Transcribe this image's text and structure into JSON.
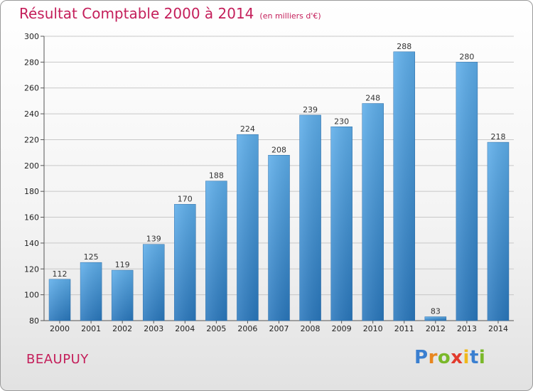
{
  "chart_data": {
    "type": "bar",
    "title": "Résultat Comptable 2000 à 2014",
    "subtitle": "(en milliers d'€)",
    "categories": [
      "2000",
      "2001",
      "2002",
      "2003",
      "2004",
      "2005",
      "2006",
      "2007",
      "2008",
      "2009",
      "2010",
      "2011",
      "2012",
      "2013",
      "2014"
    ],
    "values": [
      112,
      125,
      119,
      139,
      170,
      188,
      224,
      208,
      239,
      230,
      248,
      288,
      83,
      280,
      218
    ],
    "ylim": [
      80,
      300
    ],
    "yticks": [
      80,
      100,
      120,
      140,
      160,
      180,
      200,
      220,
      240,
      260,
      280,
      300
    ],
    "xlabel": "",
    "ylabel": "",
    "grid": true,
    "bar_color": "#3a8fd6"
  },
  "commune": "BEAUPUY",
  "logo": {
    "letters": [
      "P",
      "r",
      "o",
      "x",
      "i",
      "t",
      "i"
    ],
    "colors": [
      "#3a7fd0",
      "#e8861f",
      "#7ab829",
      "#e23b2e",
      "#f0b81a",
      "#3a7fd0",
      "#7ab829"
    ]
  }
}
